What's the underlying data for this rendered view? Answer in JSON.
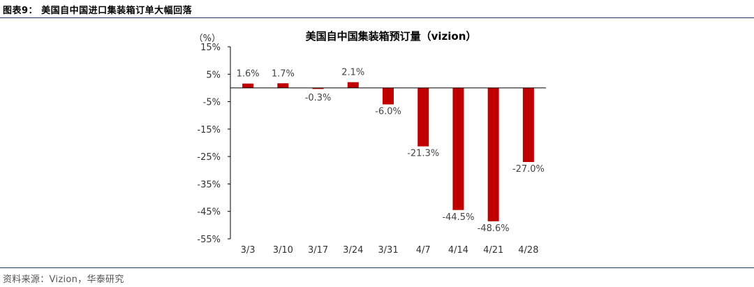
{
  "figure": {
    "caption": "图表9：  美国自中国进口集装箱订单大幅回落",
    "source": "资料来源：Vizion，华泰研究"
  },
  "chart_data": {
    "type": "bar",
    "title": "美国自中国集装箱预订量（vizion）",
    "unit": "（%）",
    "categories": [
      "3/3",
      "3/10",
      "3/17",
      "3/24",
      "3/31",
      "4/7",
      "4/14",
      "4/21",
      "4/28"
    ],
    "values": [
      1.6,
      1.7,
      -0.3,
      2.1,
      -6.0,
      -21.3,
      -44.5,
      -48.6,
      -27.0
    ],
    "data_labels": [
      "1.6%",
      "1.7%",
      "-0.3%",
      "2.1%",
      "-6.0%",
      "-21.3%",
      "-44.5%",
      "-48.6%",
      "-27.0%"
    ],
    "ylim": [
      -55,
      15
    ],
    "yticks": [
      15,
      5,
      -5,
      -15,
      -25,
      -35,
      -45,
      -55
    ],
    "ytick_labels": [
      "15%",
      "5%",
      "-5%",
      "-15%",
      "-25%",
      "-35%",
      "-45%",
      "-55%"
    ],
    "bar_color": "#c00000",
    "grid": false,
    "legend": "none"
  }
}
